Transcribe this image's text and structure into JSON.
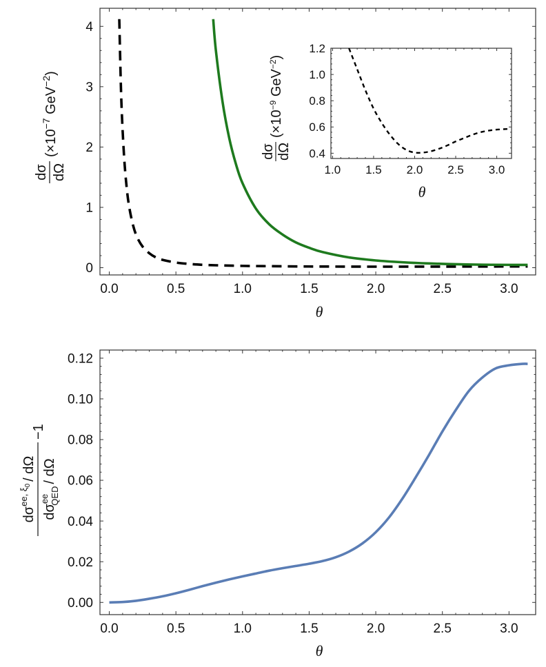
{
  "chart_data": [
    {
      "type": "line",
      "id": "top",
      "xlabel": "θ",
      "ylabel": {
        "num": "dσ",
        "den": "dΩ",
        "units_pre": "(×10",
        "units_exp": "−7",
        "units_post": " GeV",
        "units_exp2": "−2",
        "units_close": ")"
      },
      "xlim": [
        -0.07,
        3.2
      ],
      "ylim": [
        -0.12,
        4.3
      ],
      "xticks": [
        "0.0",
        "0.5",
        "1.0",
        "1.5",
        "2.0",
        "2.5",
        "3.0"
      ],
      "xtick_values": [
        0,
        0.5,
        1,
        1.5,
        2,
        2.5,
        3
      ],
      "yticks": [
        "0",
        "1",
        "2",
        "3",
        "4"
      ],
      "ytick_values": [
        0,
        1,
        2,
        3,
        4
      ],
      "series": [
        {
          "name": "dashed-black",
          "color": "#000000",
          "style": "dashed",
          "x": [
            0.075,
            0.09,
            0.11,
            0.13,
            0.15,
            0.18,
            0.21,
            0.25,
            0.3,
            0.35,
            0.4,
            0.5,
            0.6,
            0.7,
            0.8,
            1.0,
            1.2,
            1.5,
            2.0,
            2.5,
            3.0,
            3.14
          ],
          "y": [
            4.12,
            2.8,
            1.88,
            1.34,
            1.0,
            0.69,
            0.5,
            0.35,
            0.24,
            0.17,
            0.13,
            0.085,
            0.062,
            0.048,
            0.04,
            0.03,
            0.025,
            0.02,
            0.017,
            0.018,
            0.02,
            0.021
          ]
        },
        {
          "name": "solid-green",
          "color": "#1e7a1e",
          "style": "solid",
          "x": [
            0.78,
            0.8,
            0.85,
            0.9,
            0.95,
            1.0,
            1.1,
            1.2,
            1.3,
            1.4,
            1.5,
            1.6,
            1.8,
            2.0,
            2.2,
            2.4,
            2.6,
            2.8,
            3.0,
            3.14
          ],
          "y": [
            4.12,
            3.6,
            2.75,
            2.15,
            1.72,
            1.4,
            0.98,
            0.72,
            0.55,
            0.42,
            0.33,
            0.26,
            0.17,
            0.12,
            0.09,
            0.07,
            0.058,
            0.05,
            0.047,
            0.046
          ]
        }
      ]
    },
    {
      "type": "line",
      "id": "inset",
      "xlabel": "θ",
      "ylabel": {
        "num": "dσ",
        "den": "dΩ",
        "units_pre": "(×10",
        "units_exp": "−9",
        "units_post": " GeV",
        "units_exp2": "−2",
        "units_close": ")"
      },
      "xlim": [
        0.98,
        3.18
      ],
      "ylim": [
        0.36,
        1.2
      ],
      "xticks": [
        "1.0",
        "1.5",
        "2.0",
        "2.5",
        "3.0"
      ],
      "xtick_values": [
        1,
        1.5,
        2,
        2.5,
        3
      ],
      "yticks": [
        "0.4",
        "0.6",
        "0.8",
        "1.0",
        "1.2"
      ],
      "ytick_values": [
        0.4,
        0.6,
        0.8,
        1.0,
        1.2
      ],
      "series": [
        {
          "name": "dashed-black",
          "color": "#000000",
          "style": "dashed",
          "x": [
            1.2,
            1.3,
            1.4,
            1.5,
            1.6,
            1.7,
            1.8,
            1.9,
            2.0,
            2.1,
            2.2,
            2.3,
            2.4,
            2.5,
            2.6,
            2.7,
            2.8,
            2.9,
            3.0,
            3.14
          ],
          "y": [
            1.2,
            1.04,
            0.88,
            0.74,
            0.63,
            0.54,
            0.47,
            0.425,
            0.405,
            0.405,
            0.415,
            0.435,
            0.46,
            0.49,
            0.515,
            0.54,
            0.56,
            0.572,
            0.58,
            0.585
          ]
        }
      ]
    },
    {
      "type": "line",
      "id": "bottom",
      "xlabel": "θ",
      "ylabel": {
        "num_a": "dσ",
        "num_sup": "ee, ξ",
        "num_sub0": "0",
        "num_b": "/ dΩ",
        "den_a": "dσ",
        "den_sup": "ee",
        "den_sub": "QED",
        "den_b": "/ dΩ",
        "suffix": "−1"
      },
      "xlim": [
        -0.07,
        3.2
      ],
      "ylim": [
        -0.006,
        0.124
      ],
      "xticks": [
        "0.0",
        "0.5",
        "1.0",
        "1.5",
        "2.0",
        "2.5",
        "3.0"
      ],
      "xtick_values": [
        0,
        0.5,
        1,
        1.5,
        2,
        2.5,
        3
      ],
      "yticks": [
        "0.00",
        "0.02",
        "0.04",
        "0.06",
        "0.08",
        "0.10",
        "0.12"
      ],
      "ytick_values": [
        0,
        0.02,
        0.04,
        0.06,
        0.08,
        0.1,
        0.12
      ],
      "series": [
        {
          "name": "solid-blue",
          "color": "#5a7db5",
          "style": "solid",
          "x": [
            0.0,
            0.1,
            0.2,
            0.3,
            0.4,
            0.5,
            0.6,
            0.7,
            0.8,
            0.9,
            1.0,
            1.1,
            1.2,
            1.3,
            1.4,
            1.5,
            1.6,
            1.7,
            1.8,
            1.9,
            2.0,
            2.1,
            2.2,
            2.3,
            2.4,
            2.5,
            2.6,
            2.7,
            2.8,
            2.9,
            3.0,
            3.1,
            3.14
          ],
          "y": [
            0.0,
            0.0002,
            0.0008,
            0.0018,
            0.003,
            0.0045,
            0.0062,
            0.008,
            0.0097,
            0.0113,
            0.0128,
            0.0142,
            0.0156,
            0.0168,
            0.0179,
            0.019,
            0.0203,
            0.0222,
            0.025,
            0.029,
            0.0345,
            0.0418,
            0.051,
            0.0615,
            0.0725,
            0.084,
            0.0945,
            0.104,
            0.1105,
            0.115,
            0.1165,
            0.1172,
            0.1172
          ]
        }
      ]
    }
  ]
}
